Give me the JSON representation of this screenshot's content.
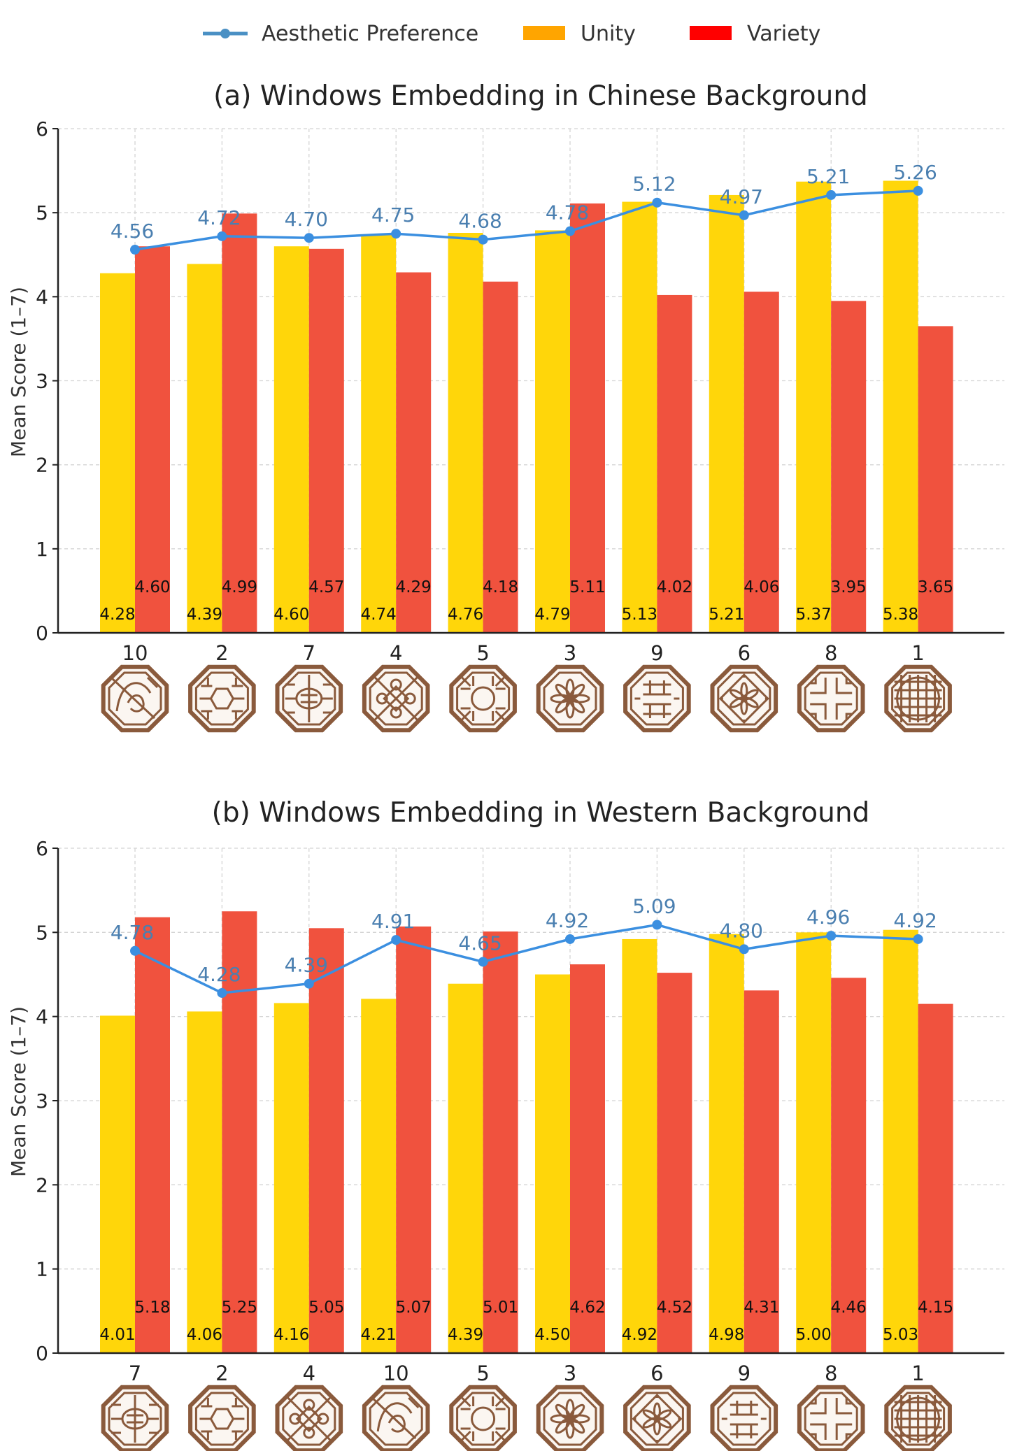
{
  "legend": {
    "items": [
      {
        "label": "Aesthetic Preference",
        "color": "#4a90c4",
        "kind": "line"
      },
      {
        "label": "Unity",
        "color": "#ffa500",
        "kind": "bar"
      },
      {
        "label": "Variety",
        "color": "#ff0000",
        "kind": "bar"
      }
    ]
  },
  "colors": {
    "unity": "#ffd60a",
    "variety": "#f0523e",
    "line": "#3b8fe0",
    "line_label": "#4a7fb0",
    "grid": "#d4d4d4",
    "axis": "#222222",
    "window_frame": "#8a5a3c"
  },
  "chart_data": [
    {
      "type": "bar",
      "title": "(a) Windows Embedding in Chinese Background",
      "xlabel": "",
      "ylabel": "Mean Score (1–7)",
      "ylim": [
        0,
        6
      ],
      "yticks": [
        "0",
        "1",
        "2",
        "3",
        "4",
        "5",
        "6"
      ],
      "grid": true,
      "categories": [
        "10",
        "2",
        "7",
        "4",
        "5",
        "3",
        "9",
        "6",
        "8",
        "1"
      ],
      "series": [
        {
          "name": "Unity",
          "kind": "bar",
          "values": [
            4.28,
            4.39,
            4.6,
            4.74,
            4.76,
            4.79,
            5.13,
            5.21,
            5.37,
            5.38
          ],
          "labels": [
            "4.28",
            "4.39",
            "4.60",
            "4.74",
            "4.76",
            "4.79",
            "5.13",
            "5.21",
            "5.37",
            "5.38"
          ]
        },
        {
          "name": "Variety",
          "kind": "bar",
          "values": [
            4.6,
            4.99,
            4.57,
            4.29,
            4.18,
            5.11,
            4.02,
            4.06,
            3.95,
            3.65
          ],
          "labels": [
            "4.60",
            "4.99",
            "4.57",
            "4.29",
            "4.18",
            "5.11",
            "4.02",
            "4.06",
            "3.95",
            "3.65"
          ]
        },
        {
          "name": "Aesthetic Preference",
          "kind": "line",
          "values": [
            4.56,
            4.72,
            4.7,
            4.75,
            4.68,
            4.78,
            5.12,
            4.97,
            5.21,
            5.26
          ],
          "labels": [
            "4.56",
            "4.72",
            "4.70",
            "4.75",
            "4.68",
            "4.78",
            "5.12",
            "4.97",
            "5.21",
            "5.26"
          ]
        }
      ]
    },
    {
      "type": "bar",
      "title": "(b) Windows Embedding in Western Background",
      "xlabel": "",
      "ylabel": "Mean Score (1–7)",
      "ylim": [
        0,
        6
      ],
      "yticks": [
        "0",
        "1",
        "2",
        "3",
        "4",
        "5",
        "6"
      ],
      "grid": true,
      "categories": [
        "7",
        "2",
        "4",
        "10",
        "5",
        "3",
        "6",
        "9",
        "8",
        "1"
      ],
      "series": [
        {
          "name": "Unity",
          "kind": "bar",
          "values": [
            4.01,
            4.06,
            4.16,
            4.21,
            4.39,
            4.5,
            4.92,
            4.98,
            5.0,
            5.03
          ],
          "labels": [
            "4.01",
            "4.06",
            "4.16",
            "4.21",
            "4.39",
            "4.50",
            "4.92",
            "4.98",
            "5.00",
            "5.03"
          ]
        },
        {
          "name": "Variety",
          "kind": "bar",
          "values": [
            5.18,
            5.25,
            5.05,
            5.07,
            5.01,
            4.62,
            4.52,
            4.31,
            4.46,
            4.15
          ],
          "labels": [
            "5.18",
            "5.25",
            "5.05",
            "5.07",
            "5.01",
            "4.62",
            "4.52",
            "4.31",
            "4.46",
            "4.15"
          ]
        },
        {
          "name": "Aesthetic Preference",
          "kind": "line",
          "values": [
            4.78,
            4.28,
            4.39,
            4.91,
            4.65,
            4.92,
            5.09,
            4.8,
            4.96,
            4.92
          ],
          "labels": [
            "4.78",
            "4.28",
            "4.39",
            "4.91",
            "4.65",
            "4.92",
            "5.09",
            "4.80",
            "4.96",
            "4.92"
          ]
        }
      ]
    }
  ],
  "window_patterns": {
    "1": "grid",
    "2": "hexagon",
    "3": "flower",
    "4": "knot",
    "5": "circle",
    "6": "star",
    "7": "shou",
    "8": "cross",
    "9": "xi",
    "10": "cloud"
  }
}
